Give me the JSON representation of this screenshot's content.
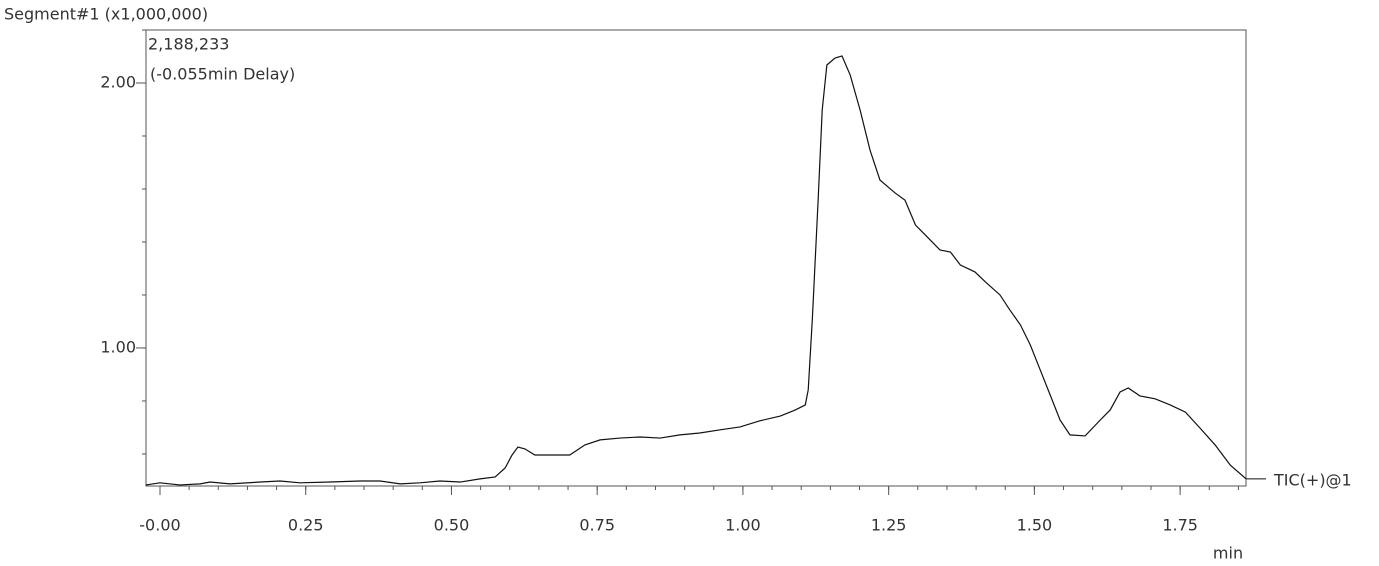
{
  "chart_data": {
    "type": "line",
    "title": "Segment#1 (x1,000,000)",
    "annotations": [
      "2,188,233",
      "(-0.055min Delay)"
    ],
    "x_label": "min",
    "series": [
      {
        "name": "TIC(+)@1",
        "color": "#111111",
        "x": [
          -0.024,
          0,
          0.034,
          0.069,
          0.086,
          0.12,
          0.172,
          0.206,
          0.24,
          0.292,
          0.343,
          0.377,
          0.412,
          0.446,
          0.48,
          0.515,
          0.549,
          0.575,
          0.592,
          0.604,
          0.614,
          0.626,
          0.643,
          0.669,
          0.703,
          0.729,
          0.755,
          0.789,
          0.824,
          0.858,
          0.892,
          0.926,
          0.961,
          0.995,
          1.029,
          1.064,
          1.09,
          1.107,
          1.112,
          1.119,
          1.129,
          1.136,
          1.144,
          1.158,
          1.17,
          1.184,
          1.201,
          1.218,
          1.235,
          1.261,
          1.278,
          1.296,
          1.321,
          1.338,
          1.356,
          1.373,
          1.398,
          1.416,
          1.441,
          1.458,
          1.476,
          1.493,
          1.51,
          1.527,
          1.544,
          1.561,
          1.587,
          1.613,
          1.63,
          1.647,
          1.661,
          1.681,
          1.707,
          1.733,
          1.759,
          1.784,
          1.81,
          1.836,
          1.863
        ],
        "values": [
          0.483,
          0.491,
          0.483,
          0.487,
          0.494,
          0.487,
          0.494,
          0.498,
          0.491,
          0.494,
          0.498,
          0.498,
          0.487,
          0.491,
          0.498,
          0.494,
          0.506,
          0.513,
          0.547,
          0.596,
          0.626,
          0.619,
          0.596,
          0.596,
          0.596,
          0.634,
          0.653,
          0.66,
          0.664,
          0.66,
          0.672,
          0.679,
          0.691,
          0.702,
          0.725,
          0.743,
          0.766,
          0.785,
          0.842,
          1.106,
          1.558,
          1.898,
          2.068,
          2.094,
          2.102,
          2.03,
          1.898,
          1.747,
          1.634,
          1.585,
          1.558,
          1.464,
          1.408,
          1.37,
          1.362,
          1.313,
          1.287,
          1.249,
          1.2,
          1.143,
          1.087,
          1.011,
          0.917,
          0.823,
          0.728,
          0.672,
          0.668,
          0.728,
          0.766,
          0.834,
          0.849,
          0.819,
          0.808,
          0.785,
          0.758,
          0.698,
          0.634,
          0.558,
          0.506
        ]
      }
    ],
    "xlim": [
      -0.024,
      1.863
    ],
    "ylim": [
      0.479,
      2.2
    ],
    "xticks": [
      {
        "value": 0,
        "label": "-0.00"
      },
      0.25,
      {
        "value": 0.5,
        "label": "0.50"
      },
      0.75,
      {
        "value": 1,
        "label": "1.00"
      },
      1.25,
      {
        "value": 1.5,
        "label": "1.50"
      },
      1.75
    ],
    "yticks": [
      {
        "value": 1,
        "label": "1.00"
      },
      {
        "value": 2,
        "label": "2.00"
      }
    ],
    "grid": false
  }
}
